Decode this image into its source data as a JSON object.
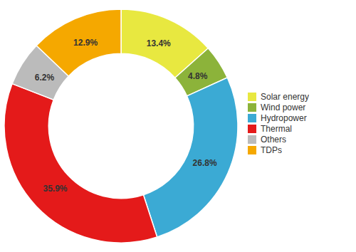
{
  "chart_data": {
    "type": "pie",
    "categories": [
      "Solar energy",
      "Wind power",
      "Hydropower",
      "Thermal",
      "Others",
      "TDPs"
    ],
    "values": [
      13.4,
      4.8,
      26.8,
      35.9,
      6.2,
      12.9
    ],
    "value_labels": [
      "13.4%",
      "4.8%",
      "26.8%",
      "35.9%",
      "6.2%",
      "12.9%"
    ],
    "colors": [
      "#E8E840",
      "#8CB33A",
      "#3BAAD4",
      "#E41A1A",
      "#BBBBBB",
      "#F5A800"
    ],
    "data_labels": true,
    "legend": "right"
  }
}
